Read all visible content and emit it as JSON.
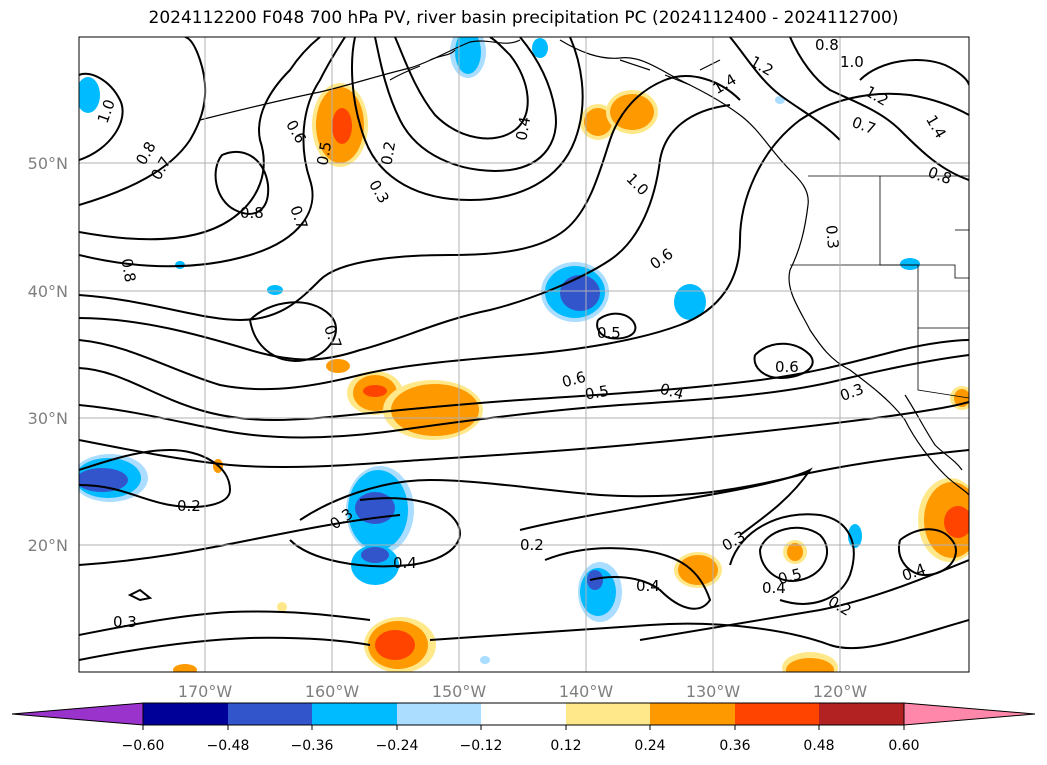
{
  "title": "2024112200 F048 700 hPa PV, river basin precipitation PC (2024112400 - 2024112700)",
  "lat_labels": [
    "50°N",
    "40°N",
    "30°N",
    "20°N"
  ],
  "lon_labels": [
    "170°W",
    "160°W",
    "150°W",
    "140°W",
    "130°W",
    "120°W"
  ],
  "contour_labels": [
    "1.0",
    "0.8",
    "0.7",
    "0.6",
    "0.5",
    "0.2",
    "0.3",
    "0.4",
    "0.8",
    "0.7",
    "0.8",
    "1.2",
    "1.0",
    "0.8",
    "1.4",
    "1.2",
    "1.4",
    "0.7",
    "0.8",
    "1.0",
    "0.6",
    "0.3",
    "0.7",
    "0.5",
    "0.6",
    "0.5",
    "0.4",
    "0.6",
    "0.3",
    "0.2",
    "0.3",
    "0.4",
    "0.2",
    "0.3",
    "0.4",
    "0.4",
    "0.5",
    "0.2",
    "0.4",
    "0.3",
    "0.6"
  ],
  "colorbar": {
    "ticks": [
      "−0.60",
      "−0.48",
      "−0.36",
      "−0.24",
      "−0.12",
      "0.12",
      "0.24",
      "0.36",
      "0.48",
      "0.60"
    ],
    "colors": [
      "#9933cc",
      "#000099",
      "#3355cc",
      "#00bbff",
      "#aaddff",
      "#ffffff",
      "#ffe88a",
      "#ff9900",
      "#ff4400",
      "#b22222",
      "#ff88aa"
    ]
  },
  "colors": {
    "gridline": "#b0b0b0",
    "contour": "#000000",
    "tick_label": "#7f7f7f"
  }
}
